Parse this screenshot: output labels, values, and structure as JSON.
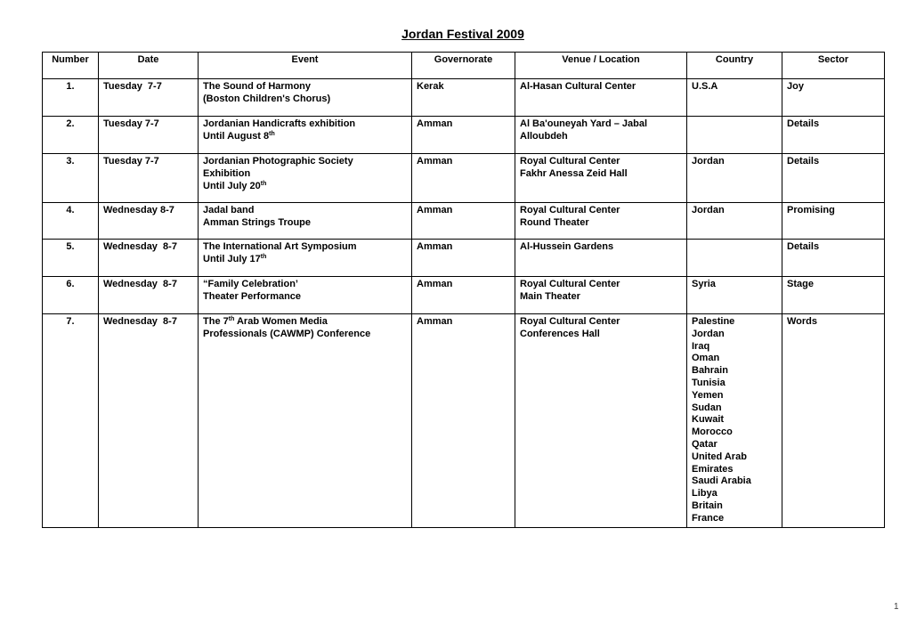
{
  "page": {
    "title": "Jordan Festival 2009",
    "page_number": "1"
  },
  "table": {
    "headers": [
      "Number",
      "Date",
      "Event",
      "Governorate",
      "Venue / Location",
      "Country",
      "Sector"
    ],
    "rows": [
      {
        "number": "1.",
        "date": "Tuesday  7-7",
        "event": [
          [
            "The Sound of Harmony"
          ],
          [
            "(Boston Children's Chorus)"
          ]
        ],
        "governorate": "Kerak",
        "venue": [
          [
            "Al-Hasan Cultural Center"
          ]
        ],
        "country": [
          [
            "U.S.A"
          ]
        ],
        "sector": "Joy"
      },
      {
        "number": "2.",
        "date": "Tuesday 7-7",
        "event": [
          [
            "Jordanian Handicrafts exhibition"
          ],
          [
            "Until August 8",
            {
              "sup": "th"
            }
          ]
        ],
        "governorate": "Amman",
        "venue": [
          [
            "Al Ba'ouneyah Yard – Jabal"
          ],
          [
            "Alloubdeh"
          ]
        ],
        "country": [],
        "sector": "Details"
      },
      {
        "number": "3.",
        "date": "Tuesday 7-7",
        "event": [
          [
            "Jordanian Photographic Society"
          ],
          [
            "Exhibition"
          ],
          [
            "Until July 20",
            {
              "sup": "th"
            }
          ]
        ],
        "governorate": "Amman",
        "venue": [
          [
            "Royal Cultural Center"
          ],
          [
            "Fakhr Anessa Zeid Hall"
          ]
        ],
        "country": [
          [
            "Jordan"
          ]
        ],
        "sector": "Details"
      },
      {
        "number": "4.",
        "date": "Wednesday 8-7",
        "event": [
          [
            "Jadal band"
          ],
          [
            "Amman Strings Troupe"
          ]
        ],
        "governorate": "Amman",
        "venue": [
          [
            "Royal Cultural Center"
          ],
          [
            "Round Theater"
          ]
        ],
        "country": [
          [
            "Jordan"
          ]
        ],
        "sector": "Promising"
      },
      {
        "number": "5.",
        "date": "Wednesday  8-7",
        "event": [
          [
            "The International Art Symposium"
          ],
          [
            "Until July 17",
            {
              "sup": "th"
            }
          ]
        ],
        "governorate": "Amman",
        "venue": [
          [
            "Al-Hussein Gardens"
          ]
        ],
        "country": [],
        "sector": "Details"
      },
      {
        "number": "6.",
        "date": "Wednesday  8-7",
        "event": [
          [
            "“Family Celebration’"
          ],
          [
            "Theater Performance"
          ]
        ],
        "governorate": "Amman",
        "venue": [
          [
            "Royal Cultural Center"
          ],
          [
            "Main Theater"
          ]
        ],
        "country": [
          [
            "Syria"
          ]
        ],
        "sector": "Stage"
      },
      {
        "number": "7.",
        "date": "Wednesday  8-7",
        "event": [
          [
            "The 7",
            {
              "sup": "th"
            },
            " Arab Women Media"
          ],
          [
            "Professionals (CAWMP) Conference"
          ]
        ],
        "governorate": "Amman",
        "venue": [
          [
            "Royal Cultural Center"
          ],
          [
            "Conferences Hall"
          ]
        ],
        "country": [
          [
            "Palestine"
          ],
          [
            "Jordan"
          ],
          [
            "Iraq"
          ],
          [
            "Oman"
          ],
          [
            "Bahrain"
          ],
          [
            "Tunisia"
          ],
          [
            "Yemen"
          ],
          [
            "Sudan"
          ],
          [
            "Kuwait"
          ],
          [
            "Morocco"
          ],
          [
            "Qatar"
          ],
          [
            "United Arab"
          ],
          [
            "Emirates"
          ],
          [
            "Saudi Arabia"
          ],
          [
            "Libya"
          ],
          [
            "Britain"
          ],
          [
            "France"
          ]
        ],
        "sector": "Words"
      }
    ]
  }
}
